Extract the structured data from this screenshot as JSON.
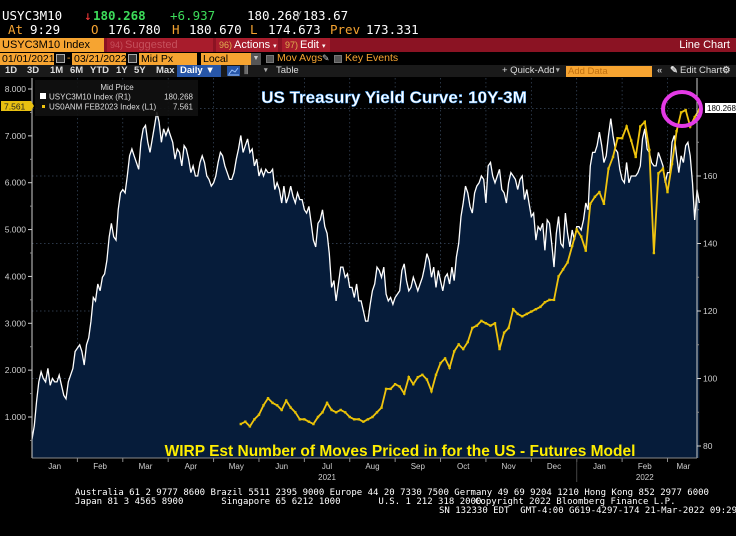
{
  "quote": {
    "ticker": "USYC3M10",
    "direction_icon": "down-arrow-icon",
    "last": "180.268",
    "change": "+6.937",
    "bid_ask": "180.268",
    "bid_ask_sep": "/",
    "ask": "183.67",
    "at_label": "At",
    "time": "9:29",
    "open_label": "O",
    "open": "176.780",
    "high_label": "H",
    "high": "180.670",
    "low_label": "L",
    "low": "174.673",
    "prev_label": "Prev",
    "prev": "173.331"
  },
  "titlebar": {
    "security": "USYC3M10 Index",
    "suggested_num": "94)",
    "suggested": "Suggested Charts",
    "actions_num": "96)",
    "actions": "Actions",
    "edit_num": "97)",
    "edit": "Edit",
    "chart_type": "Line Chart"
  },
  "settings": {
    "start_date": "01/01/2021",
    "date_sep": "-",
    "end_date": "03/21/2022",
    "field": "Mid Px",
    "currency": "Local CCY",
    "mov_avgs": "Mov Avgs",
    "key_events": "Key Events"
  },
  "toolbar": {
    "periods": [
      "1D",
      "3D",
      "1M",
      "6M",
      "YTD",
      "1Y",
      "5Y",
      "Max"
    ],
    "frequency": "Daily ▼",
    "table": "Table",
    "quick_add": "+ Quick-Add",
    "add_data_placeholder": "Add Data",
    "collapse": "«",
    "edit_chart": "Edit Chart",
    "gear": "⚙"
  },
  "chart_data": {
    "type": "line",
    "title": "US Treasury Yield Curve: 10Y-3M",
    "annotation": "WIRP Est Number of Moves Priced in for the US - Futures Model",
    "legend": {
      "header": "Mid Price",
      "placement": "top-left",
      "entries": [
        {
          "name": "USYC3M10 Index  (R1)",
          "value": "180.268",
          "color": "#ffffff"
        },
        {
          "name": "US0ANM FEB2023 Index  (L1)",
          "value": "7.561",
          "color": "#f1c40f"
        }
      ]
    },
    "x_ticks": [
      "Jan",
      "Feb",
      "Mar",
      "Apr",
      "May",
      "Jun",
      "Jul",
      "Aug",
      "Sep",
      "Oct",
      "Nov",
      "Dec",
      "Jan",
      "Feb",
      "Mar"
    ],
    "x_year_labels": [
      "2021",
      "2022"
    ],
    "x_range": [
      "2021-01-01",
      "2022-03-21"
    ],
    "left_axis": {
      "ticks": [
        "1.000",
        "2.000",
        "3.000",
        "4.000",
        "5.000",
        "6.000",
        "7.000",
        "8.000"
      ],
      "range": [
        0.15,
        8.3
      ],
      "last_value_label": "7.561"
    },
    "right_axis": {
      "ticks": [
        "80",
        "100",
        "120",
        "140",
        "160"
      ],
      "range": [
        78,
        185
      ],
      "last_value_label": "180.268"
    },
    "grid": true,
    "series": [
      {
        "name": "USYC3M10 Index",
        "axis": "right",
        "color": "#ffffff",
        "fill": "#061c3a",
        "x_months": [
          0.0,
          0.05,
          0.1,
          0.15,
          0.2,
          0.25,
          0.3,
          0.35,
          0.4,
          0.45,
          0.5,
          0.55,
          0.6,
          0.65,
          0.7,
          0.75,
          0.8,
          0.85,
          0.9,
          0.95,
          1.0,
          1.05,
          1.1,
          1.15,
          1.2,
          1.25,
          1.3,
          1.35,
          1.4,
          1.45,
          1.5,
          1.55,
          1.6,
          1.65,
          1.7,
          1.75,
          1.8,
          1.85,
          1.9,
          1.95,
          2.0,
          2.05,
          2.1,
          2.15,
          2.2,
          2.25,
          2.3,
          2.35,
          2.4,
          2.45,
          2.5,
          2.55,
          2.6,
          2.65,
          2.7,
          2.75,
          2.8,
          2.85,
          2.9,
          2.95,
          3.0,
          3.05,
          3.1,
          3.15,
          3.2,
          3.25,
          3.3,
          3.35,
          3.4,
          3.45,
          3.5,
          3.55,
          3.6,
          3.65,
          3.7,
          3.75,
          3.8,
          3.85,
          3.9,
          3.95,
          4.0,
          4.05,
          4.1,
          4.15,
          4.2,
          4.25,
          4.3,
          4.35,
          4.4,
          4.45,
          4.5,
          4.55,
          4.6,
          4.65,
          4.7,
          4.75,
          4.8,
          4.85,
          4.9,
          4.95,
          5.0,
          5.05,
          5.1,
          5.15,
          5.2,
          5.25,
          5.3,
          5.35,
          5.4,
          5.45,
          5.5,
          5.55,
          5.6,
          5.65,
          5.7,
          5.75,
          5.8,
          5.85,
          5.9,
          5.95,
          6.0,
          6.05,
          6.1,
          6.15,
          6.2,
          6.25,
          6.3,
          6.35,
          6.4,
          6.45,
          6.5,
          6.55,
          6.6,
          6.65,
          6.7,
          6.75,
          6.8,
          6.85,
          6.9,
          6.95,
          7.0,
          7.05,
          7.1,
          7.15,
          7.2,
          7.25,
          7.3,
          7.35,
          7.4,
          7.45,
          7.5,
          7.55,
          7.6,
          7.65,
          7.7,
          7.75,
          7.8,
          7.85,
          7.9,
          7.95,
          8.0,
          8.05,
          8.1,
          8.15,
          8.2,
          8.25,
          8.3,
          8.35,
          8.4,
          8.45,
          8.5,
          8.55,
          8.6,
          8.65,
          8.7,
          8.75,
          8.8,
          8.85,
          8.9,
          8.95,
          9.0,
          9.05,
          9.1,
          9.15,
          9.2,
          9.25,
          9.3,
          9.35,
          9.4,
          9.45,
          9.5,
          9.55,
          9.6,
          9.65,
          9.7,
          9.75,
          9.8,
          9.85,
          9.9,
          9.95,
          10.0,
          10.05,
          10.1,
          10.15,
          10.2,
          10.25,
          10.3,
          10.35,
          10.4,
          10.45,
          10.5,
          10.55,
          10.6,
          10.65,
          10.7,
          10.75,
          10.8,
          10.85,
          10.9,
          10.95,
          11.0,
          11.05,
          11.1,
          11.15,
          11.2,
          11.25,
          11.3,
          11.35,
          11.4,
          11.45,
          11.5,
          11.55,
          11.6,
          11.65,
          11.7,
          11.75,
          11.8,
          11.85,
          11.9,
          11.95,
          12.0,
          12.05,
          12.1,
          12.15,
          12.2,
          12.25,
          12.3,
          12.35,
          12.4,
          12.45,
          12.5,
          12.55,
          12.6,
          12.65,
          12.7,
          12.75,
          12.8,
          12.85,
          12.9,
          12.95,
          13.0,
          13.05,
          13.1,
          13.15,
          13.2,
          13.25,
          13.3,
          13.35,
          13.4,
          13.45,
          13.5,
          13.55,
          13.6,
          13.65,
          13.7,
          13.75,
          13.8,
          13.85,
          13.9,
          13.95,
          14.0,
          14.05,
          14.1,
          14.15,
          14.2,
          14.25,
          14.3,
          14.35,
          14.4,
          14.45,
          14.5,
          14.55,
          14.6,
          14.65,
          14.7
        ],
        "values": [
          82,
          86,
          93,
          99,
          102,
          100,
          99,
          103,
          98,
          100,
          99,
          99,
          101,
          98,
          95,
          94,
          99,
          101,
          103,
          108,
          109,
          110,
          108,
          104,
          110,
          112,
          117,
          124,
          123,
          128,
          126,
          130,
          131,
          135,
          142,
          146,
          142,
          141,
          150,
          155,
          156,
          155,
          160,
          166,
          168,
          166,
          164,
          162,
          170,
          174,
          175,
          170,
          167,
          171,
          175,
          179,
          176,
          170,
          174,
          172,
          174,
          172,
          170,
          165,
          168,
          167,
          163,
          169,
          168,
          165,
          161,
          163,
          160,
          160,
          164,
          166,
          164,
          160,
          159,
          157,
          158,
          160,
          164,
          167,
          166,
          163,
          161,
          159,
          159,
          161,
          165,
          168,
          172,
          167,
          169,
          171,
          167,
          168,
          163,
          165,
          160,
          162,
          160,
          162,
          161,
          161,
          162,
          156,
          158,
          156,
          152,
          157,
          152,
          154,
          157,
          154,
          152,
          155,
          153,
          153,
          150,
          149,
          151,
          146,
          141,
          139,
          146,
          147,
          150,
          145,
          143,
          137,
          127,
          129,
          123,
          128,
          133,
          133,
          130,
          131,
          127,
          127,
          124,
          128,
          123,
          123,
          120,
          117,
          117,
          122,
          126,
          128,
          133,
          132,
          130,
          133,
          125,
          123,
          124,
          122,
          124,
          125,
          126,
          132,
          134,
          129,
          126,
          127,
          130,
          128,
          126,
          128,
          130,
          133,
          137,
          135,
          130,
          133,
          127,
          132,
          129,
          126,
          130,
          131,
          128,
          133,
          129,
          136,
          140,
          148,
          152,
          157,
          155,
          151,
          149,
          155,
          157,
          158,
          160,
          159,
          152,
          163,
          164,
          160,
          158,
          160,
          162,
          156,
          155,
          152,
          158,
          161,
          160,
          159,
          156,
          159,
          160,
          153,
          156,
          152,
          148,
          149,
          141,
          145,
          144,
          146,
          138,
          147,
          146,
          140,
          133,
          143,
          148,
          140,
          139,
          149,
          143,
          139,
          144,
          141,
          145,
          145,
          144,
          147,
          152,
          150,
          163,
          167,
          167,
          169,
          173,
          169,
          164,
          166,
          172,
          177,
          172,
          168,
          167,
          162,
          159,
          158,
          164,
          158,
          160,
          160,
          160,
          161,
          163,
          171,
          174,
          168,
          167,
          164,
          163,
          163,
          167,
          165,
          163,
          158,
          161,
          161,
          170,
          172,
          166,
          161,
          166,
          164,
          169,
          170,
          166,
          158,
          147,
          156,
          152,
          145,
          148,
          152,
          156,
          165,
          166,
          170,
          176,
          180,
          175,
          180,
          180
        ],
        "last": 180.268
      },
      {
        "name": "US0ANM FEB2023 Index",
        "axis": "left",
        "color": "#f1c40f",
        "x_months": [
          4.6,
          4.7,
          4.8,
          4.9,
          5.0,
          5.1,
          5.2,
          5.3,
          5.4,
          5.5,
          5.6,
          5.7,
          5.8,
          5.9,
          6.0,
          6.1,
          6.2,
          6.3,
          6.4,
          6.5,
          6.6,
          6.7,
          6.8,
          6.9,
          7.0,
          7.1,
          7.2,
          7.3,
          7.4,
          7.5,
          7.6,
          7.7,
          7.8,
          7.9,
          8.0,
          8.1,
          8.2,
          8.3,
          8.4,
          8.5,
          8.6,
          8.7,
          8.8,
          8.9,
          9.0,
          9.1,
          9.2,
          9.3,
          9.4,
          9.5,
          9.6,
          9.7,
          9.8,
          9.9,
          10.0,
          10.1,
          10.2,
          10.3,
          10.4,
          10.5,
          10.6,
          10.7,
          10.8,
          10.9,
          11.0,
          11.1,
          11.2,
          11.3,
          11.4,
          11.5,
          11.6,
          11.7,
          11.8,
          11.9,
          12.0,
          12.1,
          12.2,
          12.3,
          12.4,
          12.5,
          12.6,
          12.7,
          12.8,
          12.9,
          13.0,
          13.1,
          13.2,
          13.3,
          13.4,
          13.5,
          13.6,
          13.7,
          13.8,
          13.9,
          14.0,
          14.1,
          14.2,
          14.3,
          14.4,
          14.5,
          14.6,
          14.7
        ],
        "values": [
          0.85,
          0.9,
          0.8,
          0.95,
          1.05,
          1.25,
          1.4,
          1.3,
          1.25,
          1.15,
          1.35,
          1.2,
          1.1,
          0.95,
          0.95,
          0.9,
          0.85,
          1.0,
          1.1,
          1.3,
          1.15,
          1.1,
          1.15,
          1.1,
          1.0,
          0.95,
          0.95,
          0.9,
          0.95,
          1.0,
          1.1,
          1.2,
          1.6,
          1.6,
          1.7,
          1.65,
          1.5,
          1.85,
          1.7,
          1.85,
          1.9,
          1.8,
          1.55,
          1.9,
          2.15,
          2.25,
          2.05,
          2.4,
          2.55,
          2.45,
          2.6,
          2.9,
          2.95,
          3.05,
          3.0,
          2.95,
          3.0,
          2.45,
          2.8,
          2.9,
          3.3,
          3.2,
          3.15,
          3.2,
          3.25,
          3.3,
          3.35,
          3.45,
          3.5,
          3.5,
          4.0,
          4.15,
          4.3,
          4.65,
          5.0,
          4.85,
          4.55,
          5.55,
          5.7,
          5.8,
          5.55,
          6.3,
          6.55,
          6.95,
          6.95,
          7.2,
          6.9,
          6.55,
          7.2,
          7.3,
          6.7,
          4.5,
          6.2,
          6.3,
          5.8,
          6.4,
          7.1,
          7.5,
          7.55,
          7.2,
          7.4,
          7.56
        ],
        "last": 7.561
      }
    ]
  },
  "footer": {
    "line1": "Australia 61 2 9777 8600 Brazil 5511 2395 9000 Europe 44 20 7330 7500 Germany 49 69 9204 1210 Hong Kong 852 2977 6000",
    "line2a": "Japan 81 3 4565 8900       Singapore 65 6212 1000       U.S. 1 212 318 2000",
    "line2b": "Copyright 2022 Bloomberg Finance L.P.",
    "line3": "SN 132330 EDT  GMT-4:00 G619-4297-174 21-Mar-2022 09:29:53"
  }
}
